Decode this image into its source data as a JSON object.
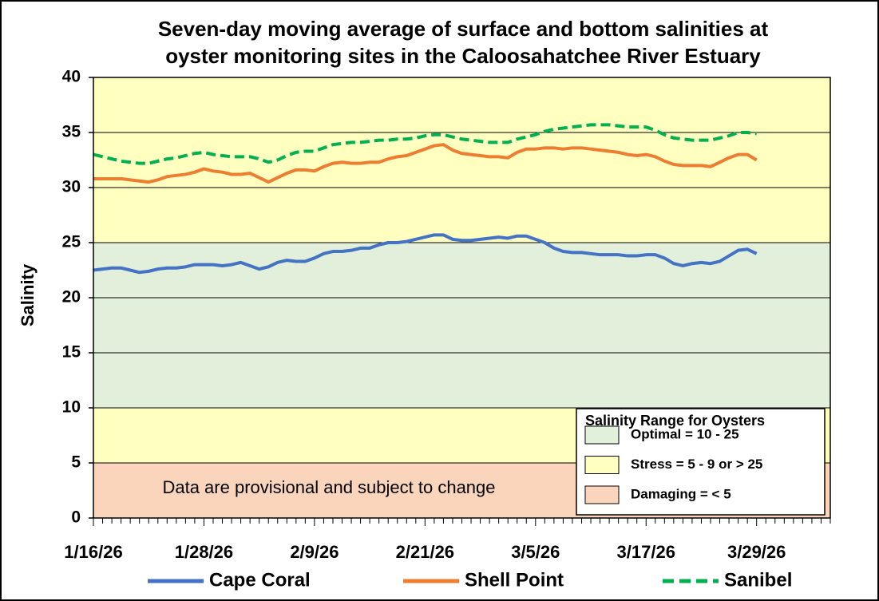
{
  "chart_data": {
    "type": "line",
    "title": [
      "Seven-day moving average of surface and bottom salinities at",
      "oyster monitoring sites in the Caloosahatchee River Estuary"
    ],
    "y_label": "Salinity",
    "annotation": "Data are provisional and subject to change",
    "categories": [
      "1/16/26",
      null,
      null,
      null,
      null,
      null,
      null,
      null,
      null,
      null,
      null,
      null,
      "1/28/26",
      null,
      null,
      null,
      null,
      null,
      null,
      null,
      null,
      null,
      null,
      null,
      "2/9/26",
      null,
      null,
      null,
      null,
      null,
      null,
      null,
      null,
      null,
      null,
      null,
      "2/21/26",
      null,
      null,
      null,
      null,
      null,
      null,
      null,
      null,
      null,
      null,
      null,
      "3/5/26",
      null,
      null,
      null,
      null,
      null,
      null,
      null,
      null,
      null,
      null,
      null,
      "3/17/26",
      null,
      null,
      null,
      null,
      null,
      null,
      null,
      null,
      null,
      null,
      null,
      "3/29/26",
      null,
      null,
      null,
      null,
      null,
      null,
      null,
      null
    ],
    "ylim": [
      0,
      40
    ],
    "yticks": [
      0,
      5,
      10,
      15,
      20,
      25,
      30,
      35,
      40
    ],
    "grid": true,
    "zones_title": "Salinity Range for Oysters",
    "zones": [
      {
        "label": "Optimal =  10 - 25",
        "color": "#e2efda",
        "ranges": [
          [
            10,
            25
          ]
        ]
      },
      {
        "label": "Stress = 5 - 9 or > 25",
        "color": "#ffffc0",
        "ranges": [
          [
            5,
            10
          ],
          [
            25,
            40
          ]
        ]
      },
      {
        "label": "Damaging  = < 5",
        "color": "#fbd5bb",
        "ranges": [
          [
            0,
            5
          ]
        ]
      }
    ],
    "series": [
      {
        "name": "Cape Coral",
        "color": "#4472c4",
        "dash": false,
        "values": [
          22.5,
          22.6,
          22.7,
          22.7,
          22.5,
          22.3,
          22.4,
          22.6,
          22.7,
          22.7,
          22.8,
          23.0,
          23.0,
          23.0,
          22.9,
          23.0,
          23.2,
          22.9,
          22.6,
          22.8,
          23.2,
          23.4,
          23.3,
          23.3,
          23.6,
          24.0,
          24.2,
          24.2,
          24.3,
          24.5,
          24.5,
          24.8,
          25.0,
          25.0,
          25.1,
          25.3,
          25.5,
          25.7,
          25.7,
          25.3,
          25.2,
          25.2,
          25.3,
          25.4,
          25.5,
          25.4,
          25.6,
          25.6,
          25.3,
          25.0,
          24.5,
          24.2,
          24.1,
          24.1,
          24.0,
          23.9,
          23.9,
          23.9,
          23.8,
          23.8,
          23.9,
          23.9,
          23.6,
          23.1,
          22.9,
          23.1,
          23.2,
          23.1,
          23.3,
          23.8,
          24.3,
          24.4,
          24.0,
          null,
          null,
          null,
          null,
          null,
          null,
          null,
          null
        ]
      },
      {
        "name": "Shell Point",
        "color": "#ed7d31",
        "dash": false,
        "values": [
          30.8,
          30.8,
          30.8,
          30.8,
          30.7,
          30.6,
          30.5,
          30.7,
          31.0,
          31.1,
          31.2,
          31.4,
          31.7,
          31.5,
          31.4,
          31.2,
          31.2,
          31.3,
          30.9,
          30.5,
          30.9,
          31.3,
          31.6,
          31.6,
          31.5,
          31.9,
          32.2,
          32.3,
          32.2,
          32.2,
          32.3,
          32.3,
          32.6,
          32.8,
          32.9,
          33.2,
          33.5,
          33.8,
          33.9,
          33.4,
          33.1,
          33.0,
          32.9,
          32.8,
          32.8,
          32.7,
          33.2,
          33.5,
          33.5,
          33.6,
          33.6,
          33.5,
          33.6,
          33.6,
          33.5,
          33.4,
          33.3,
          33.2,
          33.0,
          32.9,
          33.0,
          32.8,
          32.4,
          32.1,
          32.0,
          32.0,
          32.0,
          31.9,
          32.3,
          32.7,
          33.0,
          33.0,
          32.5,
          null,
          null,
          null,
          null,
          null,
          null,
          null,
          null
        ]
      },
      {
        "name": "Sanibel",
        "color": "#00b050",
        "dash": true,
        "values": [
          33.0,
          32.8,
          32.6,
          32.4,
          32.3,
          32.2,
          32.2,
          32.4,
          32.6,
          32.7,
          32.9,
          33.1,
          33.2,
          33.0,
          32.9,
          32.8,
          32.8,
          32.8,
          32.6,
          32.3,
          32.5,
          32.9,
          33.2,
          33.3,
          33.3,
          33.6,
          33.9,
          34.0,
          34.1,
          34.1,
          34.2,
          34.3,
          34.3,
          34.4,
          34.4,
          34.5,
          34.7,
          34.8,
          34.8,
          34.6,
          34.4,
          34.3,
          34.2,
          34.1,
          34.1,
          34.1,
          34.4,
          34.6,
          34.8,
          35.1,
          35.3,
          35.4,
          35.5,
          35.6,
          35.7,
          35.7,
          35.7,
          35.6,
          35.5,
          35.5,
          35.5,
          35.2,
          34.8,
          34.5,
          34.4,
          34.3,
          34.3,
          34.3,
          34.5,
          34.7,
          35.0,
          35.0,
          34.9,
          null,
          null,
          null,
          null,
          null,
          null,
          null,
          null
        ]
      }
    ]
  }
}
